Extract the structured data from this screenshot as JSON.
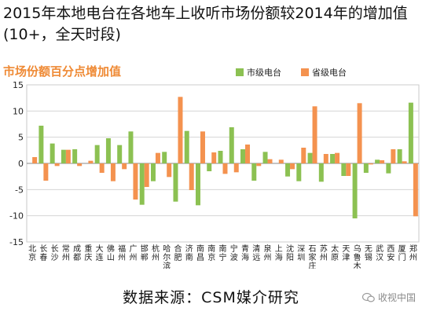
{
  "headline": "2015年本地电台在各地车上收听市场份额较2014年的增加值(10+，全天时段)",
  "source": "数据来源：CSM媒介研究",
  "watermark": {
    "text": "收视中国",
    "icon": "wechat-icon"
  },
  "chart_data": {
    "type": "bar",
    "title": "市场份额百分点增加值",
    "ylim": [
      -15,
      15
    ],
    "yticks": [
      -15,
      -10,
      -5,
      0,
      5,
      10,
      15
    ],
    "grid": true,
    "legend_position": "top-right",
    "categories": [
      "北京",
      "长春",
      "长沙",
      "常州",
      "成都",
      "重庆",
      "大连",
      "佛山",
      "福州",
      "广州",
      "邯郸",
      "杭州",
      "哈尔滨",
      "合肥",
      "济南",
      "南昌",
      "南京",
      "南宁",
      "宁波",
      "青海",
      "清远",
      "泉州",
      "上海",
      "沈阳",
      "深圳",
      "石家庄",
      "苏州",
      "太原",
      "天津",
      "乌鲁木齐",
      "无锡",
      "武汉",
      "西安",
      "厦门",
      "郑州"
    ],
    "series": [
      {
        "name": "市级电台",
        "color": "#8cc152",
        "values": [
          0,
          7.2,
          3.8,
          2.6,
          2.7,
          0,
          3.5,
          4.8,
          3.5,
          6.1,
          -7.9,
          -3.4,
          2.2,
          -7.3,
          6.2,
          -8.0,
          -1.5,
          2.4,
          6.9,
          2.7,
          -3.3,
          2.2,
          0,
          -2.5,
          -3.4,
          2.0,
          -3.5,
          1.8,
          -2.4,
          -10.5,
          -1.8,
          0.7,
          -1.9,
          2.7,
          11.6
        ]
      },
      {
        "name": "省级电台",
        "color": "#f4924f",
        "values": [
          1.2,
          -3.3,
          -0.5,
          2.6,
          -0.5,
          0.5,
          -1.8,
          -3.4,
          -1.1,
          -6.9,
          -4.5,
          2.0,
          -2.6,
          12.7,
          -5.1,
          6.1,
          2.1,
          -2.0,
          -1.7,
          3.6,
          -0.5,
          0.8,
          0.7,
          -1.1,
          3.0,
          10.9,
          1.8,
          2.0,
          -2.4,
          11.5,
          -0.2,
          0.6,
          2.7,
          0.4,
          -10.1
        ]
      }
    ]
  }
}
